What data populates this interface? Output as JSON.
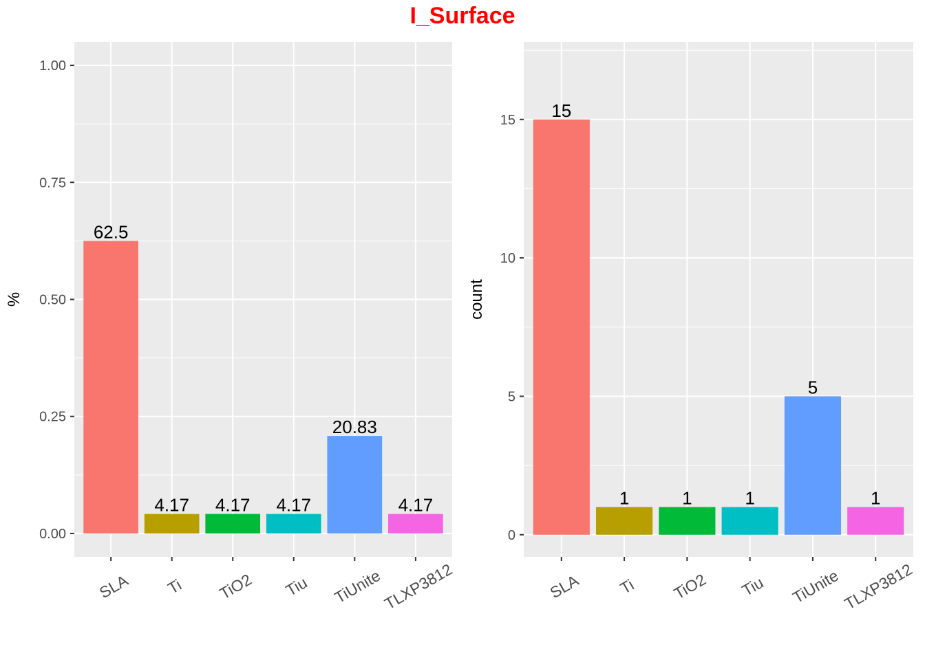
{
  "title": "I_Surface",
  "title_color": "#ff0000",
  "panel_bg": "#ebebeb",
  "grid_color": "#ffffff",
  "categories": [
    "SLA",
    "Ti",
    "TiO2",
    "Tiu",
    "TiUnite",
    "TLXP3812"
  ],
  "bar_colors": [
    "#F8766D",
    "#B79F00",
    "#00BA38",
    "#00BFC4",
    "#619CFF",
    "#F564E3"
  ],
  "chart_data": [
    {
      "type": "bar",
      "categories": [
        "SLA",
        "Ti",
        "TiO2",
        "Tiu",
        "TiUnite",
        "TLXP3812"
      ],
      "values": [
        0.625,
        0.0417,
        0.0417,
        0.0417,
        0.2083,
        0.0417
      ],
      "data_labels": [
        "62.5",
        "4.17",
        "4.17",
        "4.17",
        "20.83",
        "4.17"
      ],
      "xlabel": "",
      "ylabel": "%",
      "ylim": [
        -0.05,
        1.05
      ],
      "yticks": [
        0,
        0.25,
        0.5,
        0.75,
        1
      ],
      "ytick_labels": [
        "0.00",
        "0.25",
        "0.50",
        "0.75",
        "1.00"
      ],
      "grid": true,
      "legend": "none"
    },
    {
      "type": "bar",
      "categories": [
        "SLA",
        "Ti",
        "TiO2",
        "Tiu",
        "TiUnite",
        "TLXP3812"
      ],
      "values": [
        15,
        1,
        1,
        1,
        5,
        1
      ],
      "data_labels": [
        "15",
        "1",
        "1",
        "1",
        "5",
        "1"
      ],
      "xlabel": "",
      "ylabel": "count",
      "ylim": [
        -0.8,
        17.8
      ],
      "yticks": [
        0,
        5,
        10,
        15
      ],
      "ytick_labels": [
        "0",
        "5",
        "10",
        "15"
      ],
      "grid": true,
      "legend": "none"
    }
  ]
}
